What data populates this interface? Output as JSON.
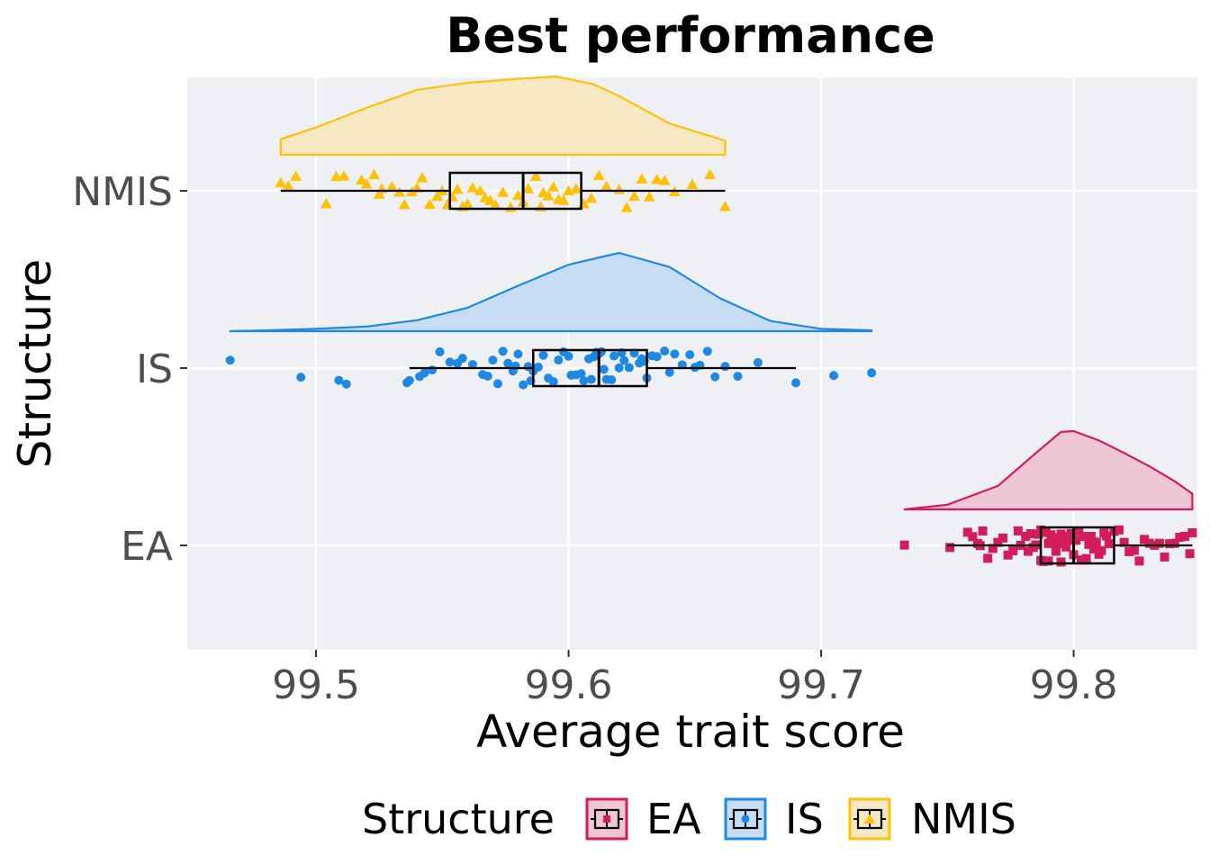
{
  "chart_data": {
    "type": "raincloud",
    "title": "Best performance",
    "xlabel": "Average trait score",
    "ylabel": "Structure",
    "xlim": [
      99.449,
      99.849
    ],
    "x_ticks": [
      "99.5",
      "99.6",
      "99.7",
      "99.8"
    ],
    "x_tick_values": [
      99.5,
      99.6,
      99.7,
      99.8
    ],
    "categories": [
      "EA",
      "IS",
      "NMIS"
    ],
    "grid": true,
    "panel_background": "#eff0f4",
    "legend": {
      "title": "Structure",
      "position": "bottom",
      "entries": [
        "EA",
        "IS",
        "NMIS"
      ]
    },
    "series": [
      {
        "name": "EA",
        "color": "#d41c5c",
        "fill": "#efc6d4",
        "marker": "square",
        "box": {
          "min": 99.75,
          "q1": 99.787,
          "median": 99.8,
          "q3": 99.816,
          "max": 99.847
        },
        "density": {
          "x": [
            99.733,
            99.75,
            99.77,
            99.785,
            99.795,
            99.8,
            99.81,
            99.82,
            99.83,
            99.84,
            99.847
          ],
          "y": [
            0.0,
            0.06,
            0.3,
            0.72,
            0.99,
            1.0,
            0.88,
            0.72,
            0.55,
            0.36,
            0.2
          ]
        },
        "points": [
          99.733,
          99.751,
          99.758,
          99.76,
          99.762,
          99.763,
          99.764,
          99.766,
          99.768,
          99.77,
          99.772,
          99.774,
          99.776,
          99.778,
          99.779,
          99.781,
          99.782,
          99.783,
          99.784,
          99.785,
          99.786,
          99.787,
          99.787,
          99.788,
          99.789,
          99.79,
          99.79,
          99.791,
          99.792,
          99.793,
          99.793,
          99.794,
          99.795,
          99.795,
          99.796,
          99.797,
          99.797,
          99.798,
          99.799,
          99.8,
          99.8,
          99.801,
          99.802,
          99.803,
          99.804,
          99.805,
          99.806,
          99.807,
          99.808,
          99.809,
          99.81,
          99.811,
          99.812,
          99.813,
          99.814,
          99.816,
          99.818,
          99.82,
          99.822,
          99.824,
          99.826,
          99.828,
          99.83,
          99.832,
          99.834,
          99.836,
          99.838,
          99.84,
          99.842,
          99.844,
          99.846,
          99.847
        ]
      },
      {
        "name": "IS",
        "color": "#1e88e5",
        "fill": "#c7ddf3",
        "marker": "circle",
        "box": {
          "min": 99.537,
          "q1": 99.586,
          "median": 99.612,
          "q3": 99.631,
          "max": 99.69
        },
        "density": {
          "x": [
            99.466,
            99.48,
            99.5,
            99.52,
            99.54,
            99.56,
            99.58,
            99.6,
            99.62,
            99.64,
            99.66,
            99.68,
            99.7,
            99.72
          ],
          "y": [
            0.0,
            0.01,
            0.03,
            0.06,
            0.14,
            0.3,
            0.58,
            0.85,
            1.0,
            0.82,
            0.42,
            0.13,
            0.03,
            0.01
          ]
        },
        "points": [
          99.466,
          99.494,
          99.509,
          99.512,
          99.536,
          99.537,
          99.541,
          99.543,
          99.546,
          99.549,
          99.553,
          99.556,
          99.558,
          99.562,
          99.566,
          99.568,
          99.57,
          99.572,
          99.574,
          99.576,
          99.578,
          99.579,
          99.58,
          99.582,
          99.584,
          99.585,
          99.586,
          99.588,
          99.59,
          99.592,
          99.594,
          99.596,
          99.598,
          99.6,
          99.601,
          99.603,
          99.605,
          99.606,
          99.608,
          99.609,
          99.61,
          99.611,
          99.612,
          99.613,
          99.614,
          99.615,
          99.617,
          99.618,
          99.62,
          99.621,
          99.622,
          99.624,
          99.626,
          99.628,
          99.629,
          99.63,
          99.631,
          99.633,
          99.635,
          99.638,
          99.64,
          99.642,
          99.645,
          99.648,
          99.65,
          99.652,
          99.655,
          99.658,
          99.662,
          99.667,
          99.675,
          99.69,
          99.705,
          99.72
        ]
      },
      {
        "name": "NMIS",
        "color": "#ffc107",
        "fill": "#f5e8c2",
        "marker": "triangle",
        "box": {
          "min": 99.486,
          "q1": 99.553,
          "median": 99.582,
          "q3": 99.605,
          "max": 99.662
        },
        "density": {
          "x": [
            99.486,
            99.5,
            99.52,
            99.54,
            99.56,
            99.58,
            99.595,
            99.61,
            99.62,
            99.64,
            99.66,
            99.662
          ],
          "y": [
            0.2,
            0.35,
            0.6,
            0.83,
            0.92,
            0.97,
            1.0,
            0.9,
            0.75,
            0.4,
            0.2,
            0.18
          ]
        },
        "points": [
          99.486,
          99.489,
          99.492,
          99.504,
          99.508,
          99.511,
          99.518,
          99.52,
          99.523,
          99.525,
          99.526,
          99.53,
          99.533,
          99.535,
          99.538,
          99.54,
          99.542,
          99.545,
          99.548,
          99.55,
          99.552,
          99.554,
          99.556,
          99.558,
          99.56,
          99.562,
          99.565,
          99.567,
          99.569,
          99.571,
          99.574,
          99.577,
          99.58,
          99.582,
          99.584,
          99.587,
          99.589,
          99.59,
          99.592,
          99.594,
          99.596,
          99.598,
          99.6,
          99.603,
          99.606,
          99.609,
          99.612,
          99.615,
          99.62,
          99.623,
          99.626,
          99.629,
          99.632,
          99.635,
          99.638,
          99.642,
          99.649,
          99.656,
          99.662
        ]
      }
    ]
  }
}
